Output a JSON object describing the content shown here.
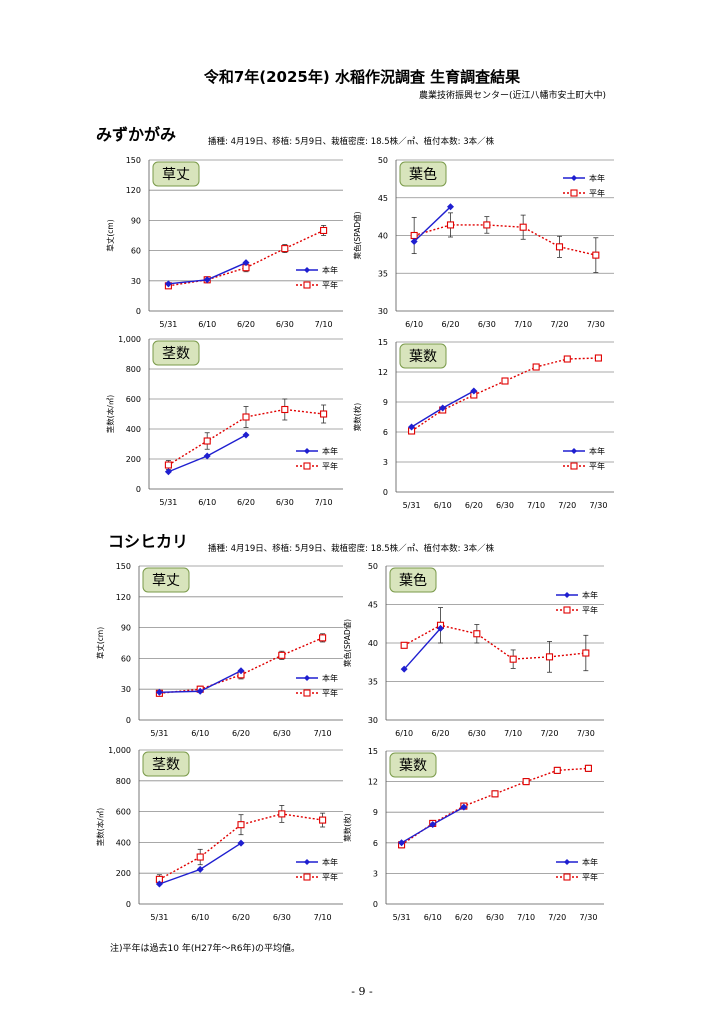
{
  "page": {
    "title": "令和7年(2025年) 水稲作況調査 生育調査結果",
    "subtitle": "農業技術振興センター(近江八幡市安土町大中)",
    "note": "注)平年は過去10 年(H27年～R6年)の平均値。",
    "page_number": "- 9 -"
  },
  "sections": [
    {
      "title": "みずかがみ",
      "conditions": "播種: 4月19日、移植: 5月9日、栽植密度: 18.5株／㎡、植付本数: 3本／株"
    },
    {
      "title": "コシヒカリ",
      "conditions": "播種: 4月19日、移植: 5月9日、栽植密度: 18.5株／㎡、植付本数: 3本／株"
    }
  ],
  "legend": {
    "current": "本年",
    "normal": "平年"
  },
  "colors": {
    "current": "#1f1fd0",
    "normal": "#e00000",
    "label_box_fill": "#d8e4bc",
    "label_box_stroke": "#7a9a4a",
    "grid": "#8c8c8c"
  },
  "chart_data": [
    {
      "type": "line",
      "section": 0,
      "label": "草丈",
      "ylabel": "草丈(cm)",
      "categories": [
        "5/31",
        "6/10",
        "6/20",
        "6/30",
        "7/10"
      ],
      "ylim": [
        0,
        150
      ],
      "yticks": [
        "0",
        "30",
        "60",
        "90",
        "120",
        "150"
      ],
      "series": [
        {
          "name": "本年",
          "values": [
            27,
            31,
            48,
            null,
            null
          ]
        },
        {
          "name": "平年",
          "values": [
            25,
            31,
            43,
            62,
            80
          ],
          "err": [
            2,
            3,
            4,
            4,
            5
          ]
        }
      ]
    },
    {
      "type": "line",
      "section": 0,
      "label": "葉色",
      "ylabel": "葉色(SPAD値)",
      "categories": [
        "6/10",
        "6/20",
        "6/30",
        "7/10",
        "7/20",
        "7/30"
      ],
      "ylim": [
        30,
        50
      ],
      "yticks": [
        "30",
        "35",
        "40",
        "45",
        "50"
      ],
      "series": [
        {
          "name": "本年",
          "values": [
            39.2,
            43.8,
            null,
            null,
            null,
            null
          ]
        },
        {
          "name": "平年",
          "values": [
            40.0,
            41.4,
            41.4,
            41.1,
            38.5,
            37.4
          ],
          "err": [
            2.4,
            1.6,
            1.1,
            1.6,
            1.4,
            2.3
          ]
        }
      ]
    },
    {
      "type": "line",
      "section": 0,
      "label": "茎数",
      "ylabel": "茎数(本/㎡)",
      "categories": [
        "5/31",
        "6/10",
        "6/20",
        "6/30",
        "7/10"
      ],
      "ylim": [
        0,
        1000
      ],
      "yticks": [
        "0",
        "200",
        "400",
        "600",
        "800",
        "1,000"
      ],
      "series": [
        {
          "name": "本年",
          "values": [
            115,
            220,
            360,
            null,
            null
          ]
        },
        {
          "name": "平年",
          "values": [
            160,
            320,
            480,
            530,
            500
          ],
          "err": [
            30,
            55,
            70,
            70,
            60
          ]
        }
      ]
    },
    {
      "type": "line",
      "section": 0,
      "label": "葉数",
      "ylabel": "葉数(枚)",
      "categories": [
        "5/31",
        "6/10",
        "6/20",
        "6/30",
        "7/10",
        "7/20",
        "7/30"
      ],
      "ylim": [
        0,
        15
      ],
      "yticks": [
        "0",
        "3",
        "6",
        "9",
        "12",
        "15"
      ],
      "series": [
        {
          "name": "本年",
          "values": [
            6.5,
            8.4,
            10.1,
            null,
            null,
            null,
            null
          ]
        },
        {
          "name": "平年",
          "values": [
            6.1,
            8.2,
            9.7,
            11.1,
            12.5,
            13.3,
            13.4
          ],
          "err": [
            0.3,
            0.3,
            0.3,
            0.3,
            0.3,
            0.3,
            0.3
          ]
        }
      ]
    },
    {
      "type": "line",
      "section": 1,
      "label": "草丈",
      "ylabel": "草丈(cm)",
      "categories": [
        "5/31",
        "6/10",
        "6/20",
        "6/30",
        "7/10"
      ],
      "ylim": [
        0,
        150
      ],
      "yticks": [
        "0",
        "30",
        "60",
        "90",
        "120",
        "150"
      ],
      "series": [
        {
          "name": "本年",
          "values": [
            27,
            28,
            48,
            null,
            null
          ]
        },
        {
          "name": "平年",
          "values": [
            26,
            30,
            44,
            63,
            80
          ],
          "err": [
            2,
            3,
            4,
            4,
            4
          ]
        }
      ]
    },
    {
      "type": "line",
      "section": 1,
      "label": "葉色",
      "ylabel": "葉色(SPAD値)",
      "categories": [
        "6/10",
        "6/20",
        "6/30",
        "7/10",
        "7/20",
        "7/30"
      ],
      "ylim": [
        30,
        50
      ],
      "yticks": [
        "30",
        "35",
        "40",
        "45",
        "50"
      ],
      "series": [
        {
          "name": "本年",
          "values": [
            36.6,
            41.9,
            null,
            null,
            null,
            null
          ]
        },
        {
          "name": "平年",
          "values": [
            39.7,
            42.3,
            41.2,
            37.9,
            38.2,
            38.7
          ],
          "err": [
            0,
            2.3,
            1.2,
            1.2,
            2.0,
            2.3
          ]
        }
      ]
    },
    {
      "type": "line",
      "section": 1,
      "label": "茎数",
      "ylabel": "茎数(本/㎡)",
      "categories": [
        "5/31",
        "6/10",
        "6/20",
        "6/30",
        "7/10"
      ],
      "ylim": [
        0,
        1000
      ],
      "yticks": [
        "0",
        "200",
        "400",
        "600",
        "800",
        "1,000"
      ],
      "series": [
        {
          "name": "本年",
          "values": [
            130,
            225,
            395,
            null,
            null
          ]
        },
        {
          "name": "平年",
          "values": [
            160,
            305,
            515,
            585,
            545
          ],
          "err": [
            30,
            50,
            65,
            55,
            45
          ]
        }
      ]
    },
    {
      "type": "line",
      "section": 1,
      "label": "葉数",
      "ylabel": "葉数(枚)",
      "categories": [
        "5/31",
        "6/10",
        "6/20",
        "6/30",
        "7/10",
        "7/20",
        "7/30"
      ],
      "ylim": [
        0,
        15
      ],
      "yticks": [
        "0",
        "3",
        "6",
        "9",
        "12",
        "15"
      ],
      "series": [
        {
          "name": "本年",
          "values": [
            6.0,
            7.8,
            9.5,
            null,
            null,
            null,
            null
          ]
        },
        {
          "name": "平年",
          "values": [
            5.8,
            7.9,
            9.6,
            10.8,
            12.0,
            13.1,
            13.3
          ],
          "err": [
            0.3,
            0.3,
            0.3,
            0.3,
            0.3,
            0.3,
            0.3
          ]
        }
      ]
    }
  ]
}
